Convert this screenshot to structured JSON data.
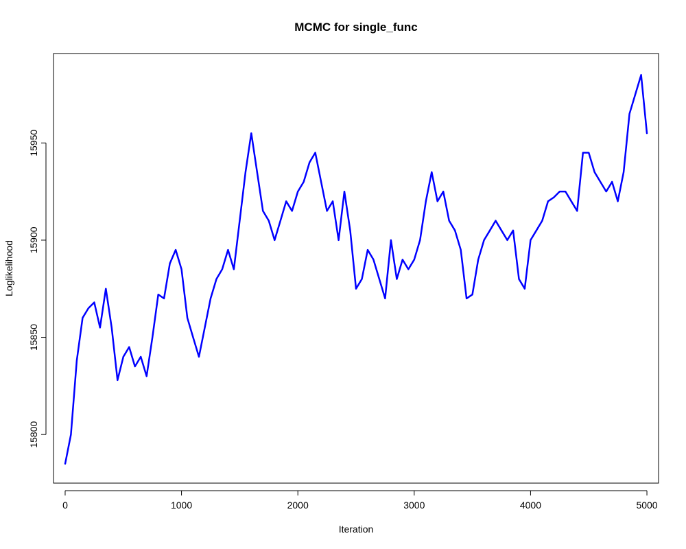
{
  "chart_data": {
    "type": "line",
    "title": "MCMC for single_func",
    "xlabel": "Iteration",
    "ylabel": "Loglikelihood",
    "xlim": [
      -100,
      5100
    ],
    "ylim": [
      15775,
      15996
    ],
    "x_ticks": [
      0,
      1000,
      2000,
      3000,
      4000,
      5000
    ],
    "y_ticks": [
      15800,
      15850,
      15900,
      15950
    ],
    "grid": false,
    "legend": "none",
    "colors": {
      "line": "#0000ff"
    },
    "series": [
      {
        "x": [
          0,
          50,
          100,
          150,
          200,
          250,
          300,
          350,
          400,
          450,
          500,
          550,
          600,
          650,
          700,
          750,
          800,
          850,
          900,
          950,
          1000,
          1050,
          1100,
          1150,
          1200,
          1250,
          1300,
          1350,
          1400,
          1450,
          1500,
          1550,
          1600,
          1650,
          1700,
          1750,
          1800,
          1850,
          1900,
          1950,
          2000,
          2050,
          2100,
          2150,
          2200,
          2250,
          2300,
          2350,
          2400,
          2450,
          2500,
          2550,
          2600,
          2650,
          2700,
          2750,
          2800,
          2850,
          2900,
          2950,
          3000,
          3050,
          3100,
          3150,
          3200,
          3250,
          3300,
          3350,
          3400,
          3450,
          3500,
          3550,
          3600,
          3650,
          3700,
          3750,
          3800,
          3850,
          3900,
          3950,
          4000,
          4050,
          4100,
          4150,
          4200,
          4250,
          4300,
          4350,
          4400,
          4450,
          4500,
          4550,
          4600,
          4650,
          4700,
          4750,
          4800,
          4850,
          4900,
          4950,
          5000
        ],
        "values": [
          15785,
          15800,
          15838,
          15860,
          15865,
          15868,
          15855,
          15875,
          15855,
          15828,
          15840,
          15845,
          15835,
          15840,
          15830,
          15850,
          15872,
          15870,
          15888,
          15895,
          15885,
          15860,
          15850,
          15840,
          15855,
          15870,
          15880,
          15885,
          15895,
          15885,
          15910,
          15935,
          15955,
          15935,
          15915,
          15910,
          15900,
          15910,
          15920,
          15915,
          15925,
          15930,
          15940,
          15945,
          15930,
          15915,
          15920,
          15900,
          15925,
          15905,
          15875,
          15880,
          15895,
          15890,
          15880,
          15870,
          15900,
          15880,
          15890,
          15885,
          15890,
          15900,
          15920,
          15935,
          15920,
          15925,
          15910,
          15905,
          15895,
          15870,
          15872,
          15890,
          15900,
          15905,
          15910,
          15905,
          15900,
          15905,
          15880,
          15875,
          15900,
          15905,
          15910,
          15920,
          15922,
          15925,
          15925,
          15920,
          15915,
          15945,
          15945,
          15935,
          15930,
          15925,
          15930,
          15920,
          15935,
          15965,
          15975,
          15985,
          15955
        ]
      }
    ]
  }
}
